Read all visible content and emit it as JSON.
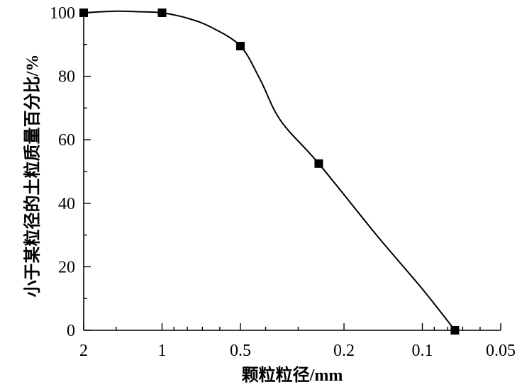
{
  "chart_data": {
    "type": "line",
    "title": "",
    "xlabel": "颗粒粒径/mm",
    "ylabel": "小于某粒径的土粒质量百分比/%",
    "x_scale": "log",
    "x_reversed": true,
    "xlim": [
      2,
      0.05
    ],
    "ylim": [
      0,
      100
    ],
    "x_ticks": [
      2,
      1,
      0.5,
      0.2,
      0.1,
      0.05
    ],
    "x_tick_labels": [
      "2",
      "1",
      "0.5",
      "0.2",
      "0.1",
      "0.05"
    ],
    "y_ticks": [
      0,
      20,
      40,
      60,
      80,
      100
    ],
    "y_tick_labels": [
      "0",
      "20",
      "40",
      "60",
      "80",
      "100"
    ],
    "grid": false,
    "legend": "none",
    "series": [
      {
        "marker": "square",
        "color": "#000000",
        "x": [
          2,
          1,
          0.5,
          0.25,
          0.075
        ],
        "y": [
          100,
          100,
          89.5,
          52.5,
          0
        ]
      }
    ],
    "curve_through": {
      "x": [
        2,
        1.5,
        1.2,
        1,
        0.8,
        0.65,
        0.5,
        0.42,
        0.35,
        0.25,
        0.15,
        0.1,
        0.075
      ],
      "y": [
        100,
        100.5,
        100.3,
        100,
        98.3,
        95.5,
        89.5,
        79,
        66,
        52.5,
        30,
        13,
        0
      ]
    }
  }
}
